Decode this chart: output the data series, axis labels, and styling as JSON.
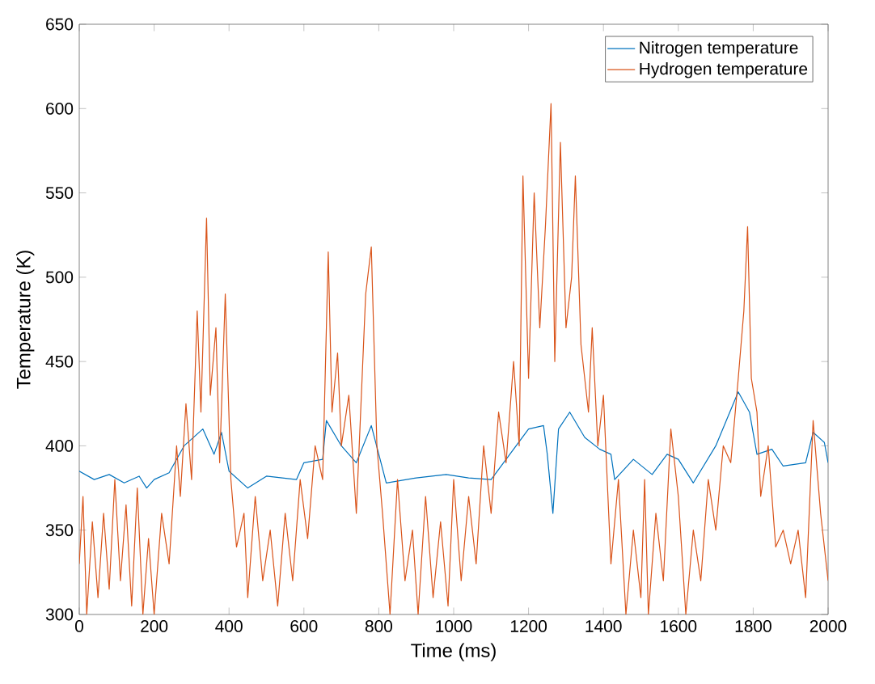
{
  "chart_data": {
    "type": "line",
    "xlabel": "Time (ms)",
    "ylabel": "Temperature (K)",
    "xlim": [
      0,
      2000
    ],
    "ylim": [
      300,
      650
    ],
    "xticks": [
      0,
      200,
      400,
      600,
      800,
      1000,
      1200,
      1400,
      1600,
      1800,
      2000
    ],
    "yticks": [
      300,
      350,
      400,
      450,
      500,
      550,
      600,
      650
    ],
    "grid": false,
    "legend": "top right",
    "marker": "none",
    "line_style": "solid",
    "series": [
      {
        "name": "Nitrogen temperature",
        "color": "#0072bd",
        "x": [
          0,
          40,
          80,
          120,
          160,
          180,
          200,
          240,
          280,
          330,
          360,
          380,
          400,
          450,
          500,
          580,
          600,
          650,
          660,
          700,
          740,
          780,
          800,
          820,
          900,
          980,
          1040,
          1100,
          1150,
          1200,
          1240,
          1250,
          1265,
          1280,
          1310,
          1350,
          1390,
          1420,
          1430,
          1480,
          1530,
          1570,
          1600,
          1640,
          1700,
          1760,
          1790,
          1810,
          1850,
          1880,
          1940,
          1960,
          1990,
          2000
        ],
        "values": [
          385,
          380,
          383,
          378,
          382,
          375,
          380,
          384,
          400,
          410,
          395,
          408,
          385,
          375,
          382,
          380,
          390,
          392,
          415,
          400,
          390,
          412,
          395,
          378,
          381,
          383,
          381,
          380,
          395,
          410,
          412,
          395,
          360,
          410,
          420,
          405,
          398,
          395,
          380,
          392,
          383,
          395,
          392,
          378,
          400,
          432,
          420,
          395,
          398,
          388,
          390,
          408,
          402,
          390
        ]
      },
      {
        "name": "Hydrogen temperature",
        "color": "#d95319",
        "x": [
          0,
          10,
          20,
          35,
          50,
          65,
          80,
          95,
          110,
          125,
          140,
          155,
          170,
          185,
          200,
          220,
          240,
          260,
          270,
          285,
          300,
          315,
          325,
          340,
          350,
          365,
          375,
          390,
          405,
          420,
          440,
          450,
          470,
          490,
          510,
          530,
          550,
          570,
          590,
          610,
          630,
          650,
          665,
          675,
          690,
          700,
          720,
          740,
          765,
          780,
          795,
          810,
          830,
          850,
          870,
          890,
          905,
          925,
          945,
          965,
          985,
          1000,
          1020,
          1040,
          1060,
          1080,
          1100,
          1120,
          1140,
          1160,
          1175,
          1185,
          1200,
          1215,
          1230,
          1245,
          1260,
          1270,
          1285,
          1300,
          1315,
          1325,
          1340,
          1360,
          1370,
          1385,
          1400,
          1420,
          1440,
          1460,
          1480,
          1500,
          1510,
          1520,
          1540,
          1560,
          1580,
          1600,
          1620,
          1640,
          1660,
          1680,
          1700,
          1720,
          1740,
          1760,
          1775,
          1785,
          1795,
          1810,
          1820,
          1840,
          1860,
          1880,
          1900,
          1920,
          1940,
          1960,
          1980,
          2000
        ],
        "values": [
          330,
          370,
          300,
          355,
          310,
          360,
          315,
          380,
          320,
          365,
          305,
          375,
          300,
          345,
          300,
          360,
          330,
          400,
          370,
          425,
          380,
          480,
          420,
          535,
          430,
          470,
          390,
          490,
          380,
          340,
          360,
          310,
          370,
          320,
          350,
          305,
          360,
          320,
          380,
          345,
          400,
          380,
          515,
          420,
          455,
          400,
          430,
          360,
          490,
          518,
          400,
          360,
          300,
          380,
          320,
          350,
          300,
          370,
          310,
          355,
          305,
          380,
          320,
          370,
          330,
          400,
          360,
          420,
          390,
          450,
          400,
          560,
          440,
          550,
          470,
          530,
          603,
          450,
          580,
          470,
          500,
          560,
          460,
          420,
          470,
          400,
          430,
          330,
          380,
          300,
          350,
          310,
          380,
          300,
          360,
          320,
          410,
          370,
          300,
          350,
          320,
          380,
          350,
          400,
          390,
          440,
          480,
          530,
          440,
          420,
          370,
          400,
          340,
          350,
          330,
          350,
          310,
          415,
          360,
          320
        ]
      }
    ]
  }
}
